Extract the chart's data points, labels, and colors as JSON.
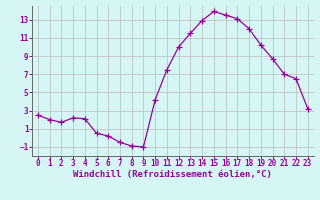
{
  "x": [
    0,
    1,
    2,
    3,
    4,
    5,
    6,
    7,
    8,
    9,
    10,
    11,
    12,
    13,
    14,
    15,
    16,
    17,
    18,
    19,
    20,
    21,
    22,
    23
  ],
  "y": [
    2.5,
    2.0,
    1.7,
    2.2,
    2.1,
    0.5,
    0.2,
    -0.5,
    -0.9,
    -1.0,
    4.2,
    7.5,
    10.0,
    11.5,
    12.9,
    13.9,
    13.5,
    13.1,
    12.0,
    10.2,
    8.7,
    7.0,
    6.5,
    3.2
  ],
  "line_color": "#990099",
  "marker": "+",
  "marker_size": 4,
  "bg_color": "#d6f5f5",
  "grid_color": "#bbbbbb",
  "xlabel": "Windchill (Refroidissement éolien,°C)",
  "xlim": [
    -0.5,
    23.5
  ],
  "ylim": [
    -2.0,
    14.5
  ],
  "yticks": [
    -1,
    1,
    3,
    5,
    7,
    9,
    11,
    13
  ],
  "xticks": [
    0,
    1,
    2,
    3,
    4,
    5,
    6,
    7,
    8,
    9,
    10,
    11,
    12,
    13,
    14,
    15,
    16,
    17,
    18,
    19,
    20,
    21,
    22,
    23
  ],
  "tick_label_color": "#990099",
  "xlabel_color": "#990099",
  "tick_fontsize": 5.5,
  "xlabel_fontsize": 6.5,
  "line_width": 0.9,
  "spine_color": "#666666"
}
